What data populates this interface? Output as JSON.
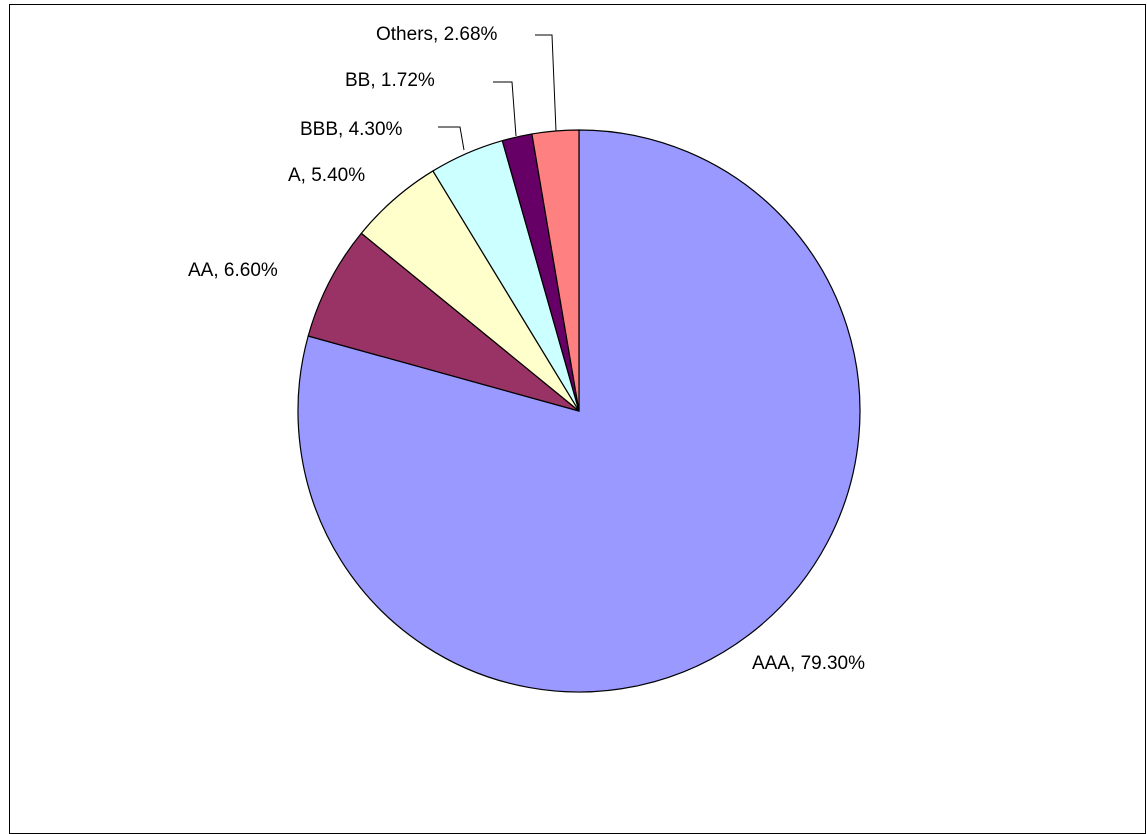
{
  "chart_data": {
    "type": "pie",
    "title": "",
    "start_angle_deg": 90,
    "direction": "clockwise",
    "legend": "none",
    "slices": [
      {
        "label": "AAA",
        "value": 79.3,
        "display": "AAA, 79.30%",
        "color": "#9999FF"
      },
      {
        "label": "AA",
        "value": 6.6,
        "display": "AA, 6.60%",
        "color": "#993366"
      },
      {
        "label": "A",
        "value": 5.4,
        "display": "A, 5.40%",
        "color": "#FFFFCC"
      },
      {
        "label": "BBB",
        "value": 4.3,
        "display": "BBB, 4.30%",
        "color": "#CCFFFF"
      },
      {
        "label": "BB",
        "value": 1.72,
        "display": "BB, 1.72%",
        "color": "#660066"
      },
      {
        "label": "Others",
        "value": 2.68,
        "display": "Others, 2.68%",
        "color": "#FF8080"
      }
    ]
  }
}
